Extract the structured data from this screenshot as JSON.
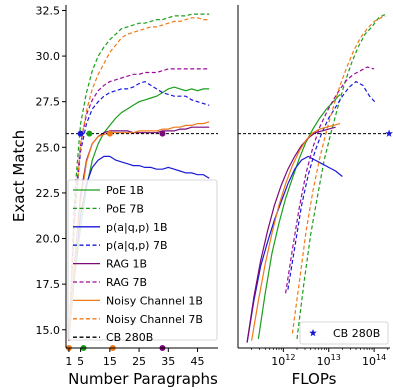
{
  "chart_data": [
    {
      "type": "line",
      "xlabel": "Number Paragraphs",
      "ylabel": "Exact Match",
      "xlim": [
        0,
        52
      ],
      "ylim": [
        14.0,
        32.8
      ],
      "xticks": [
        1,
        5,
        15,
        25,
        35,
        45
      ],
      "xtick_labels": [
        "1",
        "5",
        "15",
        "25",
        "35",
        "45"
      ],
      "yticks": [
        15.0,
        17.5,
        20.0,
        22.5,
        25.0,
        27.5,
        30.0,
        32.5
      ],
      "ytick_labels": [
        "15.0",
        "17.5",
        "20.0",
        "22.5",
        "25.0",
        "27.5",
        "30.0",
        "32.5"
      ],
      "grid": false,
      "legend_position": "bottom-left",
      "series": [
        {
          "name": "PoE 1B",
          "color": "#1a9e1a",
          "dashed": false,
          "x": [
            1,
            3,
            5,
            7,
            9,
            11,
            13,
            15,
            17,
            19,
            21,
            23,
            25,
            27,
            29,
            31,
            33,
            35,
            37,
            39,
            41,
            43,
            45,
            47,
            49
          ],
          "y": [
            14.5,
            18.0,
            20.6,
            22.8,
            24.3,
            25.2,
            25.8,
            26.2,
            26.6,
            26.9,
            27.1,
            27.3,
            27.5,
            27.6,
            27.7,
            27.8,
            28.0,
            28.2,
            28.3,
            28.2,
            28.1,
            28.2,
            28.1,
            28.2,
            28.2
          ]
        },
        {
          "name": "PoE 7B",
          "color": "#1a9e1a",
          "dashed": true,
          "x": [
            1,
            3,
            5,
            7,
            9,
            11,
            13,
            15,
            17,
            19,
            21,
            23,
            25,
            27,
            29,
            31,
            33,
            35,
            37,
            39,
            41,
            43,
            45,
            47,
            49
          ],
          "y": [
            14.5,
            22.5,
            26.3,
            28.0,
            29.2,
            30.0,
            30.5,
            30.9,
            31.2,
            31.5,
            31.6,
            31.7,
            31.8,
            31.8,
            31.9,
            32.0,
            32.0,
            32.1,
            32.2,
            32.2,
            32.2,
            32.3,
            32.3,
            32.3,
            32.3
          ]
        },
        {
          "name": "p(a|q,p) 1B",
          "color": "#1a1ad6",
          "dashed": false,
          "x": [
            1,
            3,
            5,
            7,
            9,
            11,
            13,
            15,
            17,
            19,
            21,
            23,
            25,
            27,
            29,
            31,
            33,
            35,
            37,
            39,
            41,
            43,
            45,
            47,
            49
          ],
          "y": [
            14.4,
            18.5,
            21.3,
            23.0,
            23.9,
            24.3,
            24.5,
            24.5,
            24.3,
            24.2,
            24.1,
            24.0,
            24.0,
            23.9,
            23.9,
            23.8,
            23.8,
            23.9,
            23.8,
            23.7,
            23.6,
            23.6,
            23.5,
            23.5,
            23.3
          ]
        },
        {
          "name": "p(a|q,p) 7B",
          "color": "#1a1ad6",
          "dashed": true,
          "x": [
            1,
            3,
            5,
            7,
            9,
            11,
            13,
            15,
            17,
            19,
            21,
            23,
            25,
            27,
            29,
            31,
            33,
            35,
            37,
            39,
            41,
            43,
            45,
            47,
            49
          ],
          "y": [
            14.4,
            21.5,
            24.8,
            26.3,
            27.1,
            27.5,
            27.8,
            28.0,
            28.1,
            28.2,
            28.2,
            28.3,
            28.5,
            28.6,
            28.4,
            28.2,
            28.0,
            27.9,
            27.8,
            27.8,
            27.8,
            27.6,
            27.5,
            27.4,
            27.3
          ]
        },
        {
          "name": "RAG 1B",
          "color": "#7a0a7a",
          "dashed": false,
          "x": [
            1,
            3,
            5,
            7,
            9,
            11,
            13,
            15,
            17,
            19,
            21,
            23,
            25,
            27,
            29,
            31,
            33,
            35,
            37,
            39,
            41,
            43,
            45,
            47,
            49
          ],
          "y": [
            14.4,
            18.8,
            22.4,
            24.3,
            25.2,
            25.6,
            25.8,
            25.9,
            25.9,
            25.9,
            25.9,
            25.8,
            25.8,
            25.8,
            25.8,
            25.8,
            25.9,
            25.9,
            25.9,
            26.0,
            26.0,
            26.1,
            26.1,
            26.1,
            26.1
          ]
        },
        {
          "name": "RAG 7B",
          "color": "#9b0a9b",
          "dashed": true,
          "x": [
            1,
            3,
            5,
            7,
            9,
            11,
            13,
            15,
            17,
            19,
            21,
            23,
            25,
            27,
            29,
            31,
            33,
            35,
            37,
            39,
            41,
            43,
            45,
            47,
            49
          ],
          "y": [
            14.4,
            21.8,
            25.2,
            26.8,
            27.6,
            28.1,
            28.4,
            28.6,
            28.7,
            28.8,
            28.9,
            29.0,
            29.0,
            29.1,
            29.1,
            29.1,
            29.2,
            29.3,
            29.3,
            29.3,
            29.3,
            29.3,
            29.3,
            29.3,
            29.3
          ]
        },
        {
          "name": "Noisy Channel 1B",
          "color": "#f07a1a",
          "dashed": false,
          "x": [
            1,
            3,
            5,
            7,
            9,
            11,
            13,
            15,
            17,
            19,
            21,
            23,
            25,
            27,
            29,
            31,
            33,
            35,
            37,
            39,
            41,
            43,
            45,
            47,
            49
          ],
          "y": [
            14.4,
            18.5,
            22.0,
            24.2,
            25.2,
            25.6,
            25.7,
            25.8,
            25.8,
            25.8,
            25.8,
            25.8,
            25.9,
            25.9,
            25.9,
            25.9,
            26.0,
            26.0,
            26.1,
            26.1,
            26.2,
            26.2,
            26.3,
            26.3,
            26.4
          ]
        },
        {
          "name": "Noisy Channel 7B",
          "color": "#f07a1a",
          "dashed": true,
          "x": [
            1,
            3,
            5,
            7,
            9,
            11,
            13,
            15,
            17,
            19,
            21,
            23,
            25,
            27,
            29,
            31,
            33,
            35,
            37,
            39,
            41,
            43,
            45,
            47,
            49
          ],
          "y": [
            14.5,
            21.0,
            25.2,
            27.0,
            28.2,
            29.0,
            29.6,
            30.2,
            30.6,
            31.0,
            31.2,
            31.3,
            31.4,
            31.5,
            31.6,
            31.6,
            31.7,
            31.8,
            31.9,
            31.9,
            32.0,
            32.1,
            32.1,
            32.0,
            32.0
          ]
        },
        {
          "name": "CB 280B",
          "color": "#000000",
          "dashed": true,
          "reference_line": true,
          "x": [
            0,
            52
          ],
          "y": [
            25.75,
            25.75
          ]
        }
      ],
      "markers": [
        {
          "x": 5,
          "y": 25.75,
          "color": "#1a1ad6"
        },
        {
          "x": 8,
          "y": 25.75,
          "color": "#1a9e1a"
        },
        {
          "x": 15,
          "y": 25.75,
          "color": "#f07a1a"
        },
        {
          "x": 33,
          "y": 25.75,
          "color": "#7a0a7a"
        },
        {
          "x": 1,
          "y": 14.0,
          "color": "#f07a1a"
        },
        {
          "x": 6,
          "y": 14.0,
          "color": "#1a9e1a"
        },
        {
          "x": 16,
          "y": 14.0,
          "color": "#f07a1a"
        },
        {
          "x": 33,
          "y": 14.0,
          "color": "#7a0a7a"
        }
      ]
    },
    {
      "type": "line",
      "xlabel": "FLOPs",
      "ylabel": "",
      "xscale": "log",
      "xlim_log10": [
        11.0,
        14.35
      ],
      "ylim": [
        14.0,
        32.8
      ],
      "xticks_log10": [
        12,
        13,
        14
      ],
      "xtick_labels": [
        {
          "base": "10",
          "exp": "12"
        },
        {
          "base": "10",
          "exp": "13"
        },
        {
          "base": "10",
          "exp": "14"
        }
      ],
      "grid": false,
      "legend_position": "bottom-right",
      "legend": [
        {
          "name": "CB 280B",
          "marker": "star",
          "color": "#1a1ad6"
        }
      ],
      "reference_line": {
        "y": 25.75,
        "color": "#000000",
        "dashed": true
      },
      "star_point": {
        "log10_x": 14.33,
        "y": 25.75,
        "color": "#1a1ad6"
      },
      "series": [
        {
          "name": "PoE 1B",
          "color": "#1a9e1a",
          "dashed": false,
          "log10_x": [
            11.45,
            11.6,
            11.75,
            11.9,
            12.05,
            12.2,
            12.35,
            12.5,
            12.65,
            12.8,
            12.95,
            13.1,
            13.25
          ],
          "y": [
            14.5,
            17.0,
            19.2,
            20.8,
            22.2,
            23.3,
            24.4,
            25.3,
            26.0,
            26.6,
            27.1,
            27.5,
            27.9
          ]
        },
        {
          "name": "PoE 7B",
          "color": "#1a9e1a",
          "dashed": true,
          "log10_x": [
            12.3,
            12.45,
            12.6,
            12.75,
            12.9,
            13.05,
            13.2,
            13.35,
            13.5,
            13.65,
            13.8,
            13.95,
            14.1,
            14.25
          ],
          "y": [
            14.5,
            17.5,
            20.2,
            22.3,
            24.3,
            25.8,
            27.2,
            28.5,
            29.6,
            30.5,
            31.2,
            31.6,
            32.1,
            32.3
          ]
        },
        {
          "name": "p(a|q,p) 1B",
          "color": "#1a1ad6",
          "dashed": false,
          "log10_x": [
            11.2,
            11.35,
            11.5,
            11.65,
            11.8,
            11.95,
            12.1,
            12.25,
            12.4,
            12.55,
            12.7,
            12.85,
            13.0,
            13.15,
            13.3
          ],
          "y": [
            14.3,
            16.6,
            18.5,
            19.8,
            21.0,
            22.0,
            23.0,
            23.8,
            24.3,
            24.5,
            24.3,
            24.1,
            23.9,
            23.7,
            23.4
          ]
        },
        {
          "name": "p(a|q,p) 7B",
          "color": "#1a1ad6",
          "dashed": true,
          "log10_x": [
            12.1,
            12.25,
            12.4,
            12.55,
            12.7,
            12.85,
            13.0,
            13.15,
            13.3,
            13.45,
            13.6,
            13.75,
            13.9,
            14.05
          ],
          "y": [
            17.2,
            19.5,
            21.8,
            23.5,
            24.8,
            25.8,
            26.6,
            27.2,
            27.8,
            28.3,
            28.6,
            28.4,
            27.8,
            27.4
          ]
        },
        {
          "name": "RAG 1B",
          "color": "#7a0a7a",
          "dashed": false,
          "log10_x": [
            11.2,
            11.35,
            11.5,
            11.65,
            11.8,
            11.95,
            12.1,
            12.25,
            12.4,
            12.55,
            12.7,
            12.85,
            13.0,
            13.15
          ],
          "y": [
            14.3,
            16.8,
            18.8,
            20.4,
            21.8,
            22.9,
            23.8,
            24.5,
            25.1,
            25.5,
            25.8,
            25.9,
            26.0,
            26.1
          ]
        },
        {
          "name": "RAG 7B",
          "color": "#9b0a9b",
          "dashed": true,
          "log10_x": [
            12.05,
            12.2,
            12.35,
            12.5,
            12.65,
            12.8,
            12.95,
            13.1,
            13.25,
            13.4,
            13.55,
            13.7,
            13.85,
            14.0
          ],
          "y": [
            17.0,
            19.4,
            21.7,
            23.6,
            25.0,
            26.1,
            26.9,
            27.6,
            28.2,
            28.7,
            29.0,
            29.2,
            29.4,
            29.3
          ]
        },
        {
          "name": "Noisy Channel 1B",
          "color": "#f07a1a",
          "dashed": false,
          "log10_x": [
            11.3,
            11.45,
            11.6,
            11.75,
            11.9,
            12.05,
            12.2,
            12.35,
            12.5,
            12.65,
            12.8,
            12.95,
            13.1,
            13.25
          ],
          "y": [
            14.4,
            16.6,
            18.6,
            20.3,
            21.8,
            23.0,
            24.0,
            24.8,
            25.4,
            25.8,
            26.0,
            26.1,
            26.2,
            26.3
          ]
        },
        {
          "name": "Noisy Channel 7B",
          "color": "#f07a1a",
          "dashed": true,
          "log10_x": [
            12.2,
            12.35,
            12.5,
            12.65,
            12.8,
            12.95,
            13.1,
            13.25,
            13.4,
            13.55,
            13.7,
            13.85,
            14.0,
            14.15,
            14.25
          ],
          "y": [
            14.8,
            17.6,
            20.4,
            22.6,
            24.4,
            25.9,
            27.2,
            28.4,
            29.4,
            30.3,
            31.0,
            31.5,
            31.9,
            32.1,
            32.2
          ]
        }
      ]
    }
  ]
}
